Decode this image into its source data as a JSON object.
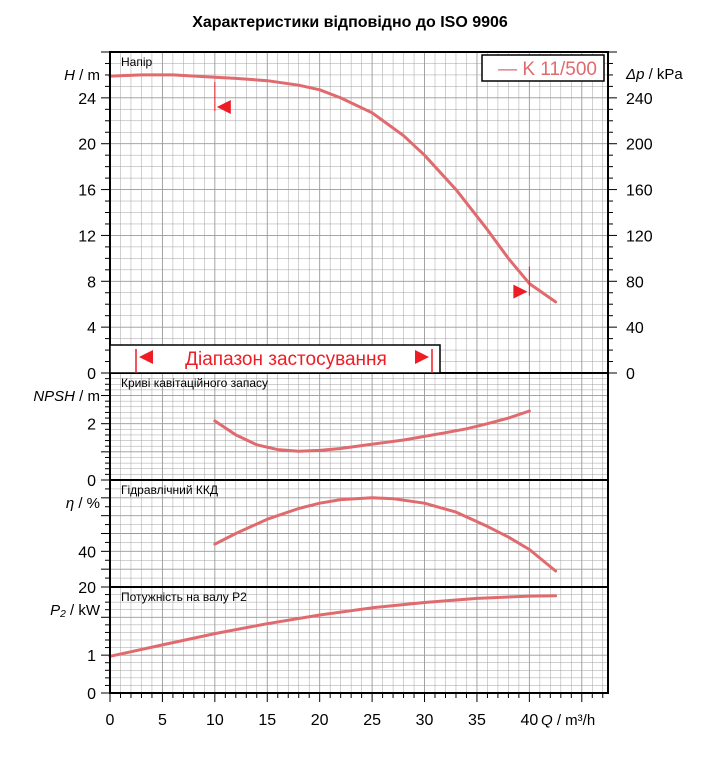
{
  "title": "Характеристики відповідно до ISO 9906",
  "legend": {
    "label": "— K 11/500"
  },
  "range_label": "Діапазон застосування",
  "x_axis": {
    "label": "Q / m³/h",
    "ticks": [
      "0",
      "5",
      "10",
      "15",
      "20",
      "25",
      "30",
      "35",
      "40"
    ]
  },
  "colors": {
    "curve": "#e06a6e",
    "marker": "#ee1c25",
    "grid": "#999999",
    "frame": "#000000"
  },
  "chart_data": [
    {
      "type": "line",
      "panel_label": "Напір",
      "ylabel": "H / m",
      "ylabel_right": "Δp / kPa",
      "ylim": [
        0,
        28
      ],
      "yticks": [
        "0",
        "4",
        "8",
        "12",
        "16",
        "20",
        "24"
      ],
      "yticks_right": [
        "0",
        "40",
        "80",
        "120",
        "160",
        "200",
        "240"
      ],
      "x": [
        0,
        3,
        6,
        10,
        12,
        15,
        18,
        20,
        22,
        25,
        28,
        30,
        33,
        36,
        38,
        40,
        42.5
      ],
      "values": [
        25.9,
        26.0,
        26.0,
        25.8,
        25.7,
        25.5,
        25.1,
        24.7,
        24.0,
        22.7,
        20.7,
        19.0,
        16.0,
        12.5,
        10.0,
        7.8,
        6.2
      ],
      "range_markers": [
        {
          "x": 10,
          "y": 23.2
        },
        {
          "x": 40,
          "y": 7.1
        }
      ]
    },
    {
      "type": "line",
      "panel_label": "Криві кавітаційного запасу",
      "ylabel": "NPSH / m",
      "ylim": [
        0,
        3.8
      ],
      "yticks": [
        "0",
        "2"
      ],
      "x": [
        10,
        12,
        14,
        16,
        18,
        20,
        22,
        24,
        26,
        28,
        30,
        32,
        34,
        36,
        38,
        40
      ],
      "values": [
        2.1,
        1.6,
        1.25,
        1.08,
        1.02,
        1.05,
        1.12,
        1.22,
        1.32,
        1.42,
        1.55,
        1.68,
        1.82,
        2.0,
        2.2,
        2.45
      ]
    },
    {
      "type": "line",
      "panel_label": "Гідравлічний ККД",
      "ylabel": "η / %",
      "ylim": [
        20,
        80
      ],
      "yticks": [
        "20",
        "40"
      ],
      "x": [
        10,
        12,
        15,
        18,
        20,
        22,
        25,
        27,
        30,
        33,
        36,
        38,
        40,
        42.5
      ],
      "values": [
        44,
        50,
        58,
        64,
        67,
        69,
        70,
        69.5,
        67,
        62,
        54,
        48,
        41,
        29
      ]
    },
    {
      "type": "line",
      "panel_label": "Потужність на валу P2",
      "ylabel": "P₂ / kW",
      "ylim": [
        0,
        2.8
      ],
      "yticks": [
        "0",
        "1"
      ],
      "x": [
        0,
        5,
        10,
        15,
        20,
        25,
        30,
        35,
        40,
        42.5
      ],
      "values": [
        0.97,
        1.27,
        1.57,
        1.83,
        2.06,
        2.25,
        2.39,
        2.5,
        2.56,
        2.57
      ]
    }
  ]
}
